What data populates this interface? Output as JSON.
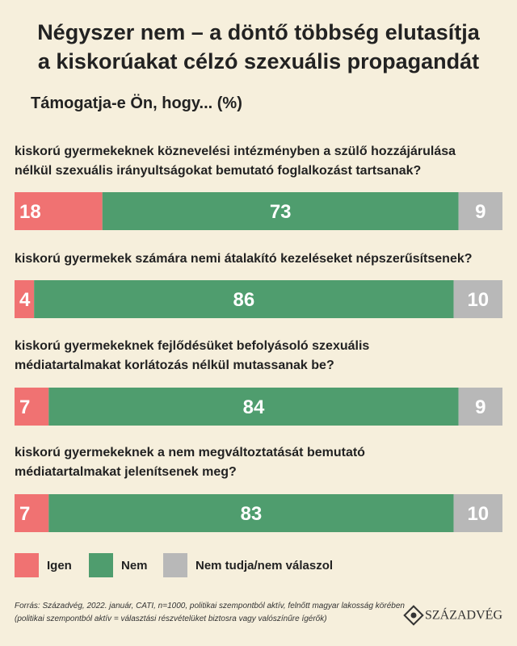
{
  "chart_data": {
    "type": "stacked-bar-horizontal",
    "title": "Négyszer nem – a döntő többség elutasítja\na kiskorúakat célzó szexuális propagandát",
    "subtitle": "Támogatja-e Ön, hogy... (%)",
    "categories": [
      "kiskorú gyermekeknek köznevelési intézményben a szülő hozzájárulása\nnélkül szexuális irányultságokat bemutató foglalkozást tartsanak?",
      "kiskorú gyermekek számára nemi átalakító kezeléseket népszerűsítsenek?",
      "kiskorú gyermekeknek fejlődésüket befolyásoló szexuális\nmédiatartalmakat korlátozás nélkül mutassanak be?",
      "kiskorú gyermekeknek a nem megváltoztatását bemutató\nmédiatartalmakat jelenítsenek meg?"
    ],
    "series": [
      {
        "name": "Igen",
        "color": "#f07272",
        "values": [
          18,
          4,
          7,
          7
        ]
      },
      {
        "name": "Nem",
        "color": "#4f9d6e",
        "values": [
          73,
          86,
          84,
          83
        ]
      },
      {
        "name": "Nem tudja/nem válaszol",
        "color": "#b8b8b8",
        "values": [
          9,
          10,
          9,
          10
        ]
      }
    ],
    "xlim": [
      0,
      100
    ],
    "source": "Forrás: Századvég, 2022. január, CATI, n=1000, politikai szempontból aktív, felnőtt magyar lakosság körében\n(politikai szempontból aktív = választási részvételüket biztosra vagy valószínűre ígérők)",
    "logo": "SZÁZADVÉG"
  }
}
